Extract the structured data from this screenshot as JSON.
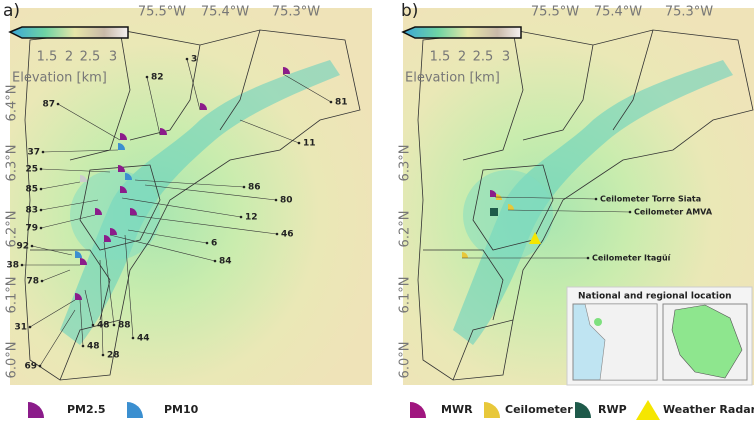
{
  "panels": [
    {
      "label": "a)",
      "lon_labels": [
        "75.5°W",
        "75.4°W",
        "75.3°W"
      ],
      "lat_labels": [
        "6.4°N",
        "6.3°N",
        "6.2°N",
        "6.1°N",
        "6.0°N"
      ],
      "colorbar": {
        "ticks": [
          "1.5",
          "2",
          "2.5",
          "3"
        ],
        "title": "Elevation [km]"
      },
      "stations": [
        "3",
        "82",
        "87",
        "81",
        "11",
        "37",
        "25",
        "86",
        "85",
        "80",
        "83",
        "12",
        "79",
        "46",
        "6",
        "92",
        "84",
        "38",
        "78",
        "31",
        "48",
        "88",
        "44",
        "48",
        "28",
        "69"
      ],
      "legend": [
        "PM2.5",
        "PM10"
      ]
    },
    {
      "label": "b)",
      "lon_labels": [
        "75.5°W",
        "75.4°W",
        "75.3°W"
      ],
      "lat_labels": [
        "6.3°N",
        "6.2°N",
        "6.1°N",
        "6.0°N"
      ],
      "colorbar": {
        "ticks": [
          "1.5",
          "2",
          "2.5",
          "3"
        ],
        "title": "Elevation [km]"
      },
      "sites": [
        "Ceilometer Torre Siata",
        "Ceilometer AMVA",
        "Ceilometer Itagüí"
      ],
      "inset_title": "National and regional location",
      "legend": [
        "MWR",
        "Ceilometer",
        "RWP",
        "Weather Radar"
      ]
    }
  ]
}
